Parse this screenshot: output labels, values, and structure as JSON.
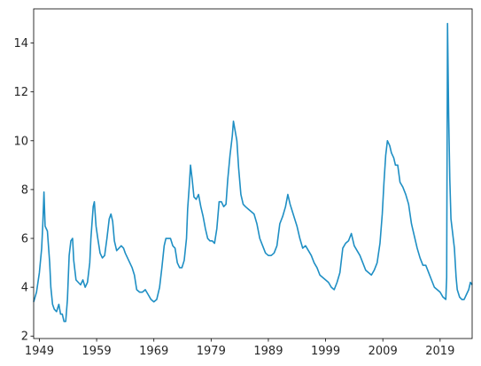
{
  "chart_data": {
    "type": "line",
    "title": "",
    "xlabel": "",
    "ylabel": "",
    "grid": false,
    "xlim": [
      1948.0,
      2024.6
    ],
    "ylim": [
      1.9,
      15.4
    ],
    "xticks": [
      1949,
      1959,
      1969,
      1979,
      1989,
      1999,
      2009,
      2019
    ],
    "yticks": [
      2,
      4,
      6,
      8,
      10,
      12,
      14
    ],
    "color": "#1f8fc4",
    "series": [
      {
        "points": [
          [
            1948.0,
            3.4
          ],
          [
            1948.5,
            3.8
          ],
          [
            1949.0,
            4.6
          ],
          [
            1949.4,
            5.6
          ],
          [
            1949.6,
            6.6
          ],
          [
            1949.8,
            7.9
          ],
          [
            1950.0,
            6.5
          ],
          [
            1950.4,
            6.3
          ],
          [
            1950.8,
            5.0
          ],
          [
            1951.0,
            4.0
          ],
          [
            1951.3,
            3.3
          ],
          [
            1951.6,
            3.1
          ],
          [
            1952.0,
            3.0
          ],
          [
            1952.4,
            3.3
          ],
          [
            1952.7,
            2.9
          ],
          [
            1953.0,
            2.9
          ],
          [
            1953.3,
            2.6
          ],
          [
            1953.6,
            2.6
          ],
          [
            1953.9,
            3.5
          ],
          [
            1954.2,
            5.3
          ],
          [
            1954.5,
            5.9
          ],
          [
            1954.8,
            6.0
          ],
          [
            1955.0,
            5.1
          ],
          [
            1955.4,
            4.3
          ],
          [
            1955.8,
            4.2
          ],
          [
            1956.2,
            4.1
          ],
          [
            1956.6,
            4.3
          ],
          [
            1957.0,
            4.0
          ],
          [
            1957.4,
            4.2
          ],
          [
            1957.8,
            5.0
          ],
          [
            1958.0,
            6.0
          ],
          [
            1958.4,
            7.3
          ],
          [
            1958.6,
            7.5
          ],
          [
            1958.9,
            6.5
          ],
          [
            1959.2,
            6.0
          ],
          [
            1959.6,
            5.4
          ],
          [
            1960.0,
            5.2
          ],
          [
            1960.4,
            5.3
          ],
          [
            1960.8,
            6.0
          ],
          [
            1961.2,
            6.8
          ],
          [
            1961.5,
            7.0
          ],
          [
            1961.8,
            6.7
          ],
          [
            1962.1,
            5.9
          ],
          [
            1962.5,
            5.5
          ],
          [
            1962.9,
            5.6
          ],
          [
            1963.3,
            5.7
          ],
          [
            1963.7,
            5.6
          ],
          [
            1964.0,
            5.4
          ],
          [
            1964.4,
            5.2
          ],
          [
            1964.8,
            5.0
          ],
          [
            1965.2,
            4.8
          ],
          [
            1965.6,
            4.5
          ],
          [
            1966.0,
            3.9
          ],
          [
            1966.5,
            3.8
          ],
          [
            1967.0,
            3.8
          ],
          [
            1967.5,
            3.9
          ],
          [
            1968.0,
            3.7
          ],
          [
            1968.5,
            3.5
          ],
          [
            1969.0,
            3.4
          ],
          [
            1969.5,
            3.5
          ],
          [
            1970.0,
            4.0
          ],
          [
            1970.4,
            4.8
          ],
          [
            1970.8,
            5.7
          ],
          [
            1971.1,
            6.0
          ],
          [
            1971.5,
            6.0
          ],
          [
            1971.9,
            6.0
          ],
          [
            1972.3,
            5.7
          ],
          [
            1972.7,
            5.6
          ],
          [
            1973.1,
            5.0
          ],
          [
            1973.5,
            4.8
          ],
          [
            1973.9,
            4.8
          ],
          [
            1974.3,
            5.1
          ],
          [
            1974.7,
            6.0
          ],
          [
            1974.9,
            7.2
          ],
          [
            1975.2,
            8.2
          ],
          [
            1975.4,
            9.0
          ],
          [
            1975.7,
            8.4
          ],
          [
            1976.0,
            7.7
          ],
          [
            1976.4,
            7.6
          ],
          [
            1976.8,
            7.8
          ],
          [
            1977.2,
            7.3
          ],
          [
            1977.6,
            6.9
          ],
          [
            1978.0,
            6.4
          ],
          [
            1978.4,
            6.0
          ],
          [
            1978.8,
            5.9
          ],
          [
            1979.2,
            5.9
          ],
          [
            1979.6,
            5.8
          ],
          [
            1980.0,
            6.4
          ],
          [
            1980.4,
            7.5
          ],
          [
            1980.8,
            7.5
          ],
          [
            1981.2,
            7.3
          ],
          [
            1981.6,
            7.4
          ],
          [
            1981.9,
            8.4
          ],
          [
            1982.3,
            9.4
          ],
          [
            1982.7,
            10.2
          ],
          [
            1982.9,
            10.8
          ],
          [
            1983.2,
            10.4
          ],
          [
            1983.5,
            10.0
          ],
          [
            1983.8,
            8.9
          ],
          [
            1984.2,
            7.8
          ],
          [
            1984.6,
            7.4
          ],
          [
            1985.0,
            7.3
          ],
          [
            1985.5,
            7.2
          ],
          [
            1986.0,
            7.1
          ],
          [
            1986.5,
            7.0
          ],
          [
            1987.0,
            6.6
          ],
          [
            1987.5,
            6.0
          ],
          [
            1988.0,
            5.7
          ],
          [
            1988.5,
            5.4
          ],
          [
            1989.0,
            5.3
          ],
          [
            1989.5,
            5.3
          ],
          [
            1990.0,
            5.4
          ],
          [
            1990.5,
            5.7
          ],
          [
            1991.0,
            6.6
          ],
          [
            1991.5,
            6.9
          ],
          [
            1992.0,
            7.3
          ],
          [
            1992.4,
            7.8
          ],
          [
            1992.8,
            7.4
          ],
          [
            1993.2,
            7.1
          ],
          [
            1993.6,
            6.8
          ],
          [
            1994.0,
            6.5
          ],
          [
            1994.5,
            6.0
          ],
          [
            1995.0,
            5.6
          ],
          [
            1995.5,
            5.7
          ],
          [
            1996.0,
            5.5
          ],
          [
            1996.5,
            5.3
          ],
          [
            1997.0,
            5.0
          ],
          [
            1997.5,
            4.8
          ],
          [
            1998.0,
            4.5
          ],
          [
            1998.5,
            4.4
          ],
          [
            1999.0,
            4.3
          ],
          [
            1999.5,
            4.2
          ],
          [
            2000.0,
            4.0
          ],
          [
            2000.5,
            3.9
          ],
          [
            2001.0,
            4.2
          ],
          [
            2001.5,
            4.6
          ],
          [
            2002.0,
            5.6
          ],
          [
            2002.5,
            5.8
          ],
          [
            2003.0,
            5.9
          ],
          [
            2003.5,
            6.2
          ],
          [
            2004.0,
            5.7
          ],
          [
            2004.5,
            5.5
          ],
          [
            2005.0,
            5.3
          ],
          [
            2005.5,
            5.0
          ],
          [
            2006.0,
            4.7
          ],
          [
            2006.5,
            4.6
          ],
          [
            2007.0,
            4.5
          ],
          [
            2007.5,
            4.7
          ],
          [
            2008.0,
            5.0
          ],
          [
            2008.5,
            5.8
          ],
          [
            2008.9,
            7.0
          ],
          [
            2009.2,
            8.3
          ],
          [
            2009.5,
            9.4
          ],
          [
            2009.8,
            10.0
          ],
          [
            2010.2,
            9.8
          ],
          [
            2010.5,
            9.5
          ],
          [
            2010.9,
            9.3
          ],
          [
            2011.2,
            9.0
          ],
          [
            2011.6,
            9.0
          ],
          [
            2012.0,
            8.3
          ],
          [
            2012.5,
            8.1
          ],
          [
            2013.0,
            7.8
          ],
          [
            2013.5,
            7.4
          ],
          [
            2014.0,
            6.6
          ],
          [
            2014.5,
            6.1
          ],
          [
            2015.0,
            5.6
          ],
          [
            2015.5,
            5.2
          ],
          [
            2016.0,
            4.9
          ],
          [
            2016.5,
            4.9
          ],
          [
            2017.0,
            4.6
          ],
          [
            2017.5,
            4.3
          ],
          [
            2018.0,
            4.0
          ],
          [
            2018.5,
            3.9
          ],
          [
            2019.0,
            3.8
          ],
          [
            2019.5,
            3.6
          ],
          [
            2020.0,
            3.5
          ],
          [
            2020.15,
            4.4
          ],
          [
            2020.3,
            14.8
          ],
          [
            2020.5,
            11.0
          ],
          [
            2020.7,
            8.4
          ],
          [
            2020.9,
            6.8
          ],
          [
            2021.2,
            6.2
          ],
          [
            2021.5,
            5.6
          ],
          [
            2021.8,
            4.4
          ],
          [
            2022.0,
            3.9
          ],
          [
            2022.4,
            3.6
          ],
          [
            2022.8,
            3.5
          ],
          [
            2023.2,
            3.5
          ],
          [
            2023.6,
            3.7
          ],
          [
            2024.0,
            3.9
          ],
          [
            2024.3,
            4.2
          ],
          [
            2024.6,
            4.1
          ]
        ]
      }
    ]
  }
}
